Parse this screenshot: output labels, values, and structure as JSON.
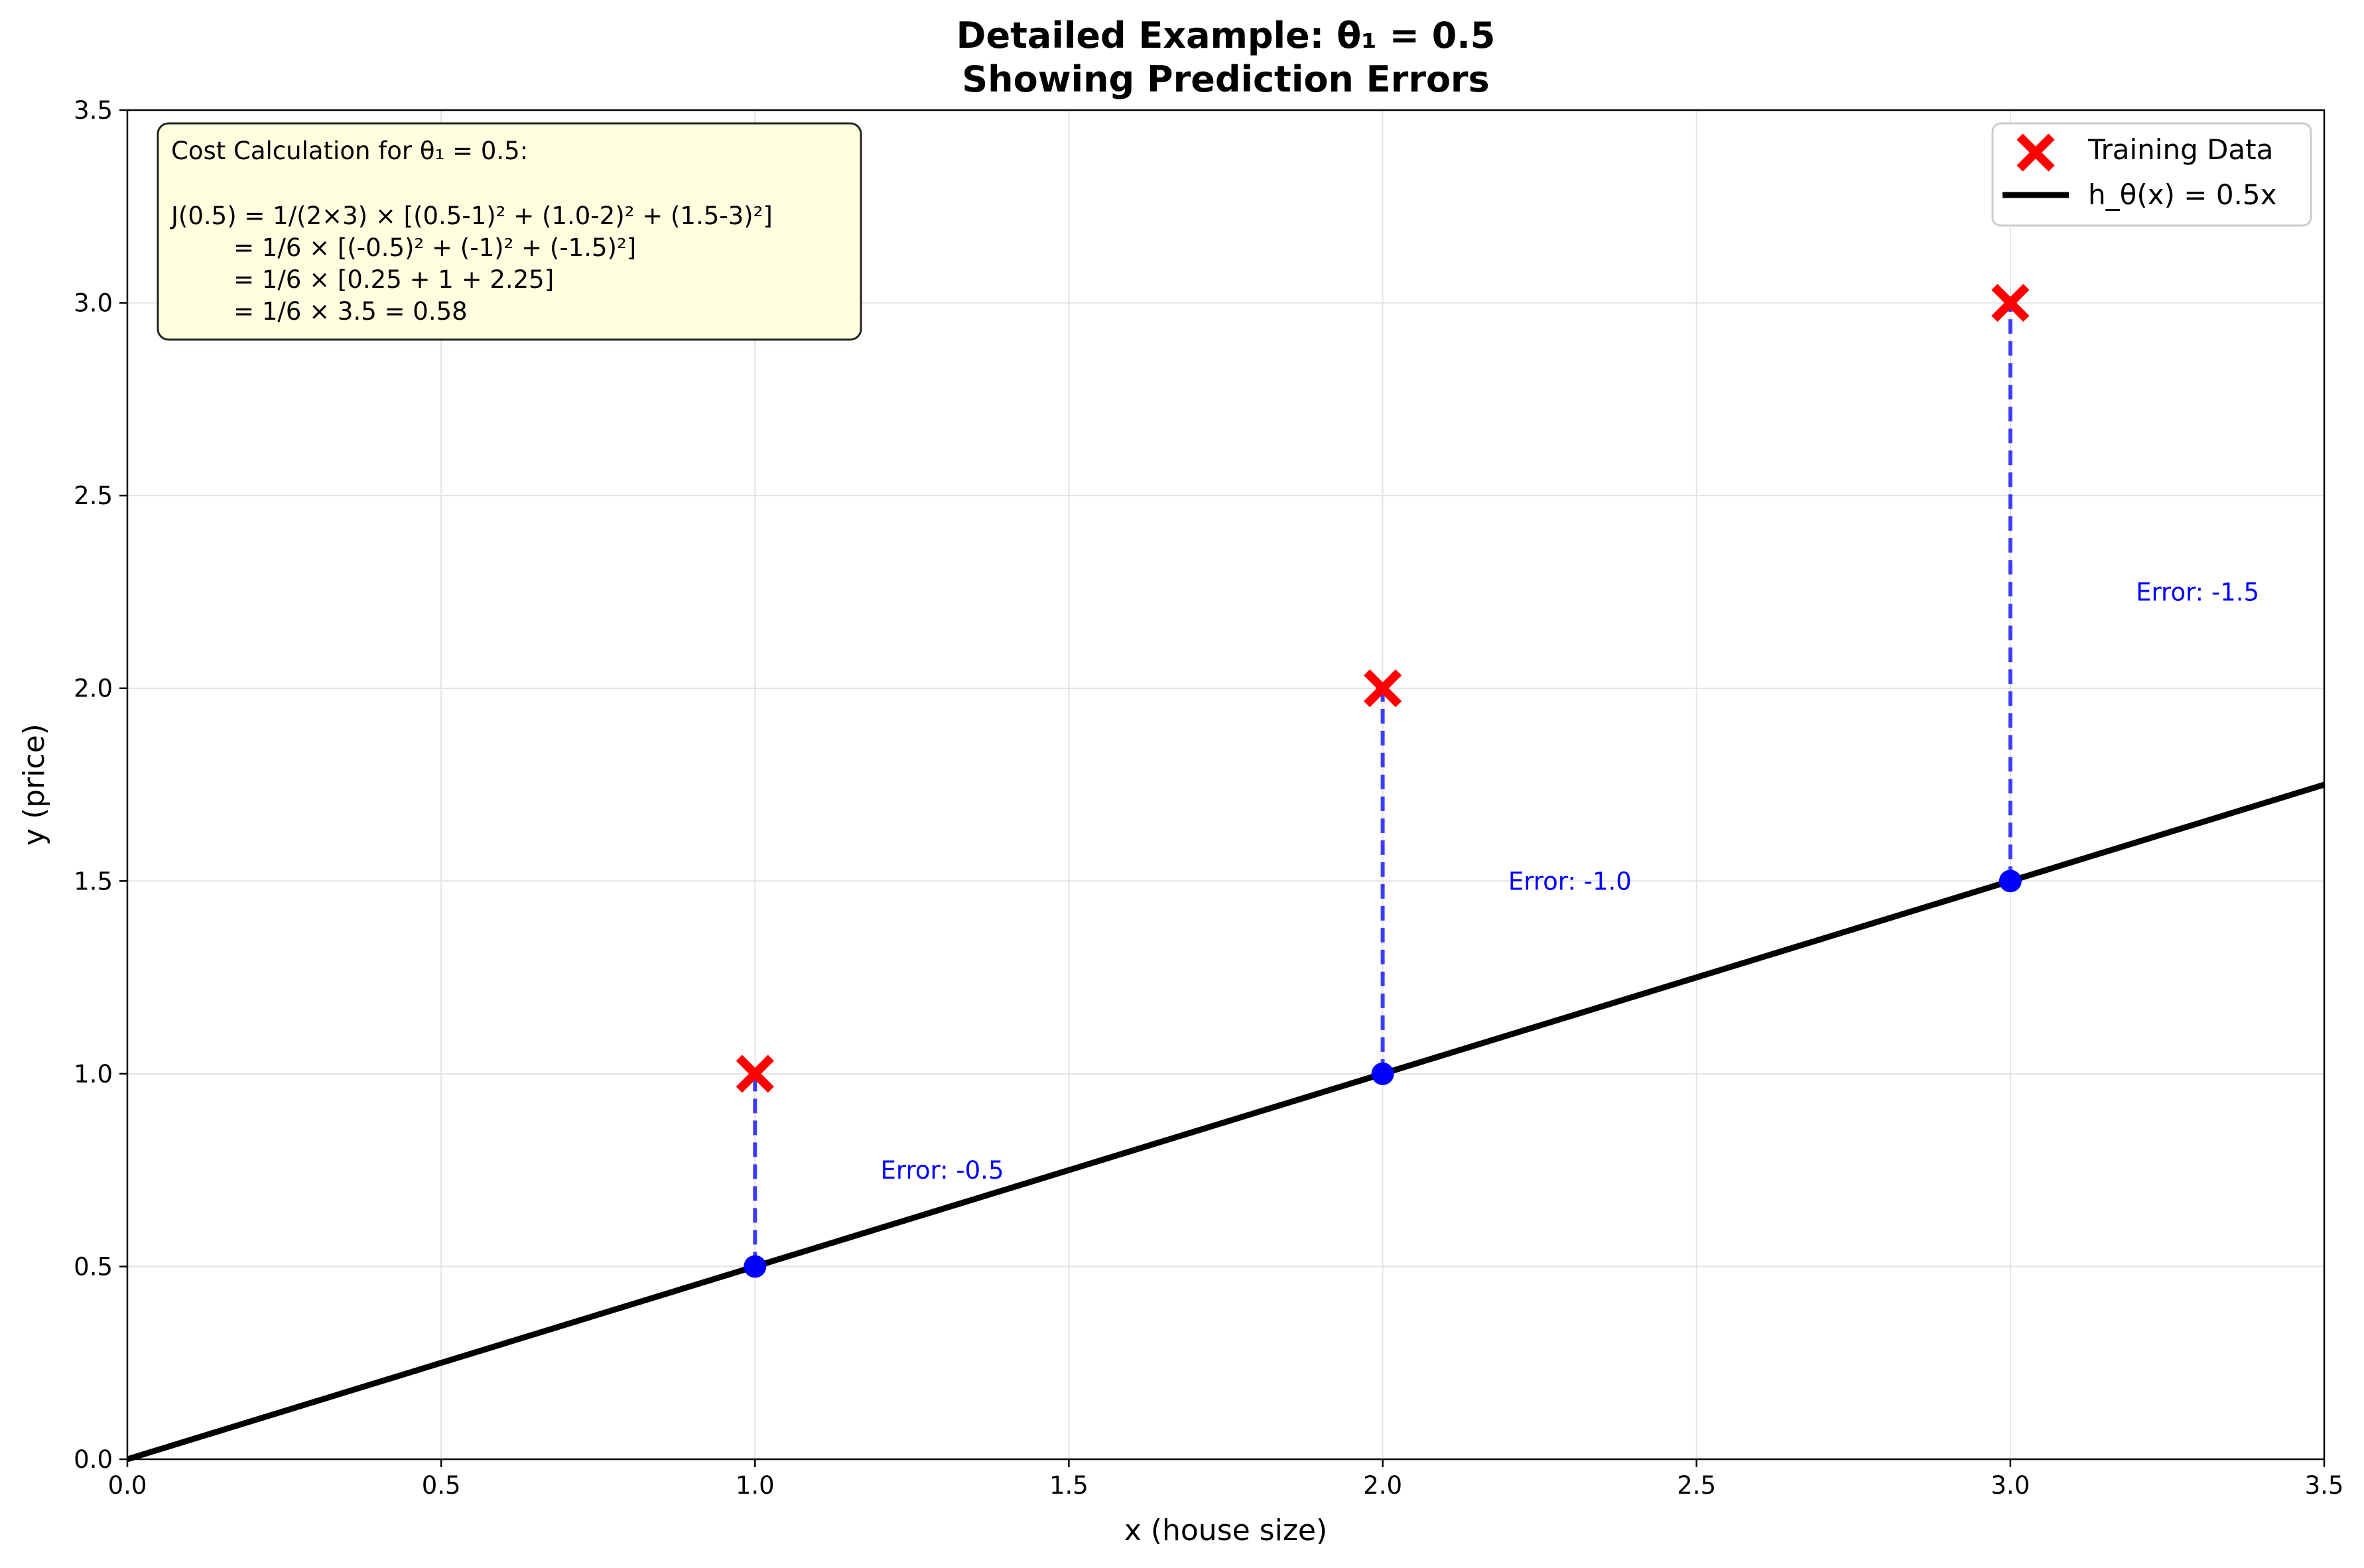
{
  "chart_data": {
    "type": "line",
    "title": "Detailed Example: θ₁ = 0.5",
    "subtitle": "Showing Prediction Errors",
    "xlabel": "x (house size)",
    "ylabel": "y (price)",
    "xlim": [
      0.0,
      3.5
    ],
    "ylim": [
      0.0,
      3.5
    ],
    "x_ticks": [
      "0.0",
      "0.5",
      "1.0",
      "1.5",
      "2.0",
      "2.5",
      "3.0",
      "3.5"
    ],
    "y_ticks": [
      "0.0",
      "0.5",
      "1.0",
      "1.5",
      "2.0",
      "2.5",
      "3.0",
      "3.5"
    ],
    "grid": true,
    "legend_position": "top-right",
    "series": [
      {
        "name": "Training Data",
        "kind": "scatter",
        "marker": "x",
        "color": "#ff0000",
        "x": [
          1.0,
          2.0,
          3.0
        ],
        "y": [
          1.0,
          2.0,
          3.0
        ]
      },
      {
        "name": "h_θ(x) = 0.5x",
        "kind": "line",
        "color": "#000000",
        "slope": 0.5,
        "x": [
          0.0,
          3.5
        ],
        "y": [
          0.0,
          1.75
        ]
      }
    ],
    "predictions": {
      "color": "#0000ff",
      "x": [
        1.0,
        2.0,
        3.0
      ],
      "y": [
        0.5,
        1.0,
        1.5
      ]
    },
    "errors": [
      {
        "label": "Error: -0.5",
        "x": 1.2,
        "y": 0.75
      },
      {
        "label": "Error: -1.0",
        "x": 2.2,
        "y": 1.5
      },
      {
        "label": "Error: -1.5",
        "x": 3.2,
        "y": 2.25
      }
    ],
    "error_color": "#0000ff",
    "annotation": {
      "lines": [
        "Cost Calculation for θ₁ = 0.5:",
        "",
        "J(0.5) = 1/(2×3) × [(0.5-1)² + (1.0-2)² + (1.5-3)²]",
        "        = 1/6 × [(-0.5)² + (-1)² + (-1.5)²]",
        "        = 1/6 × [0.25 + 1 + 2.25]",
        "        = 1/6 × 3.5 = 0.58"
      ],
      "background": "#ffffe0"
    }
  }
}
